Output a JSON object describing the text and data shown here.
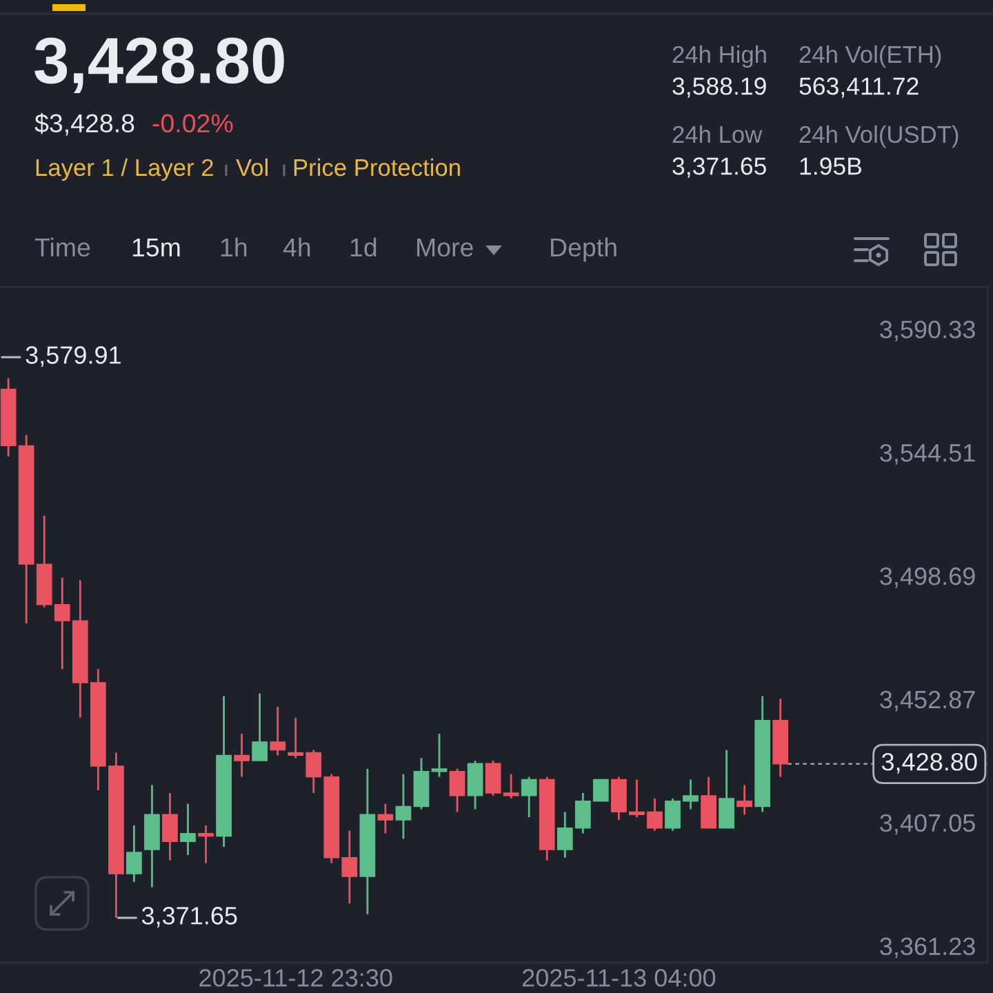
{
  "chart_data": [
    {
      "type": "other",
      "title": "3,428.80",
      "annotations": [
        "$3,428.8",
        "-0.02%",
        "Layer 1 / Layer 2",
        "Vol",
        "Price Protection",
        "24h High",
        "3,588.19",
        "24h Vol(ETH)",
        "563,411.72",
        "24h Low",
        "3,371.65",
        "24h Vol(USDT)",
        "1.95B",
        "Time",
        "15m",
        "1h",
        "4h",
        "1d",
        "More",
        "Depth"
      ]
    },
    {
      "type": "candlestick",
      "x": [
        "2025-11-12T19:30",
        "2025-11-12T19:45",
        "2025-11-12T20:00",
        "2025-11-12T20:15",
        "2025-11-12T20:30",
        "2025-11-12T20:45",
        "2025-11-12T21:00",
        "2025-11-12T21:15",
        "2025-11-12T21:30",
        "2025-11-12T21:45",
        "2025-11-12T22:00",
        "2025-11-12T22:15",
        "2025-11-12T22:30",
        "2025-11-12T22:45",
        "2025-11-12T23:00",
        "2025-11-12T23:15",
        "2025-11-12T23:30",
        "2025-11-12T23:45",
        "2025-11-13T00:00",
        "2025-11-13T00:15",
        "2025-11-13T00:30",
        "2025-11-13T00:45",
        "2025-11-13T01:00",
        "2025-11-13T01:15",
        "2025-11-13T01:30",
        "2025-11-13T01:45",
        "2025-11-13T02:00",
        "2025-11-13T02:15",
        "2025-11-13T02:30",
        "2025-11-13T02:45",
        "2025-11-13T03:00",
        "2025-11-13T03:15",
        "2025-11-13T03:30",
        "2025-11-13T03:45",
        "2025-11-13T04:00",
        "2025-11-13T04:15",
        "2025-11-13T04:30",
        "2025-11-13T04:45",
        "2025-11-13T05:00",
        "2025-11-13T05:15",
        "2025-11-13T05:30",
        "2025-11-13T05:45",
        "2025-11-13T06:00",
        "2025-11-13T06:15"
      ],
      "ohlc": [
        [
          3568,
          3572,
          3543,
          3547
        ],
        [
          3547,
          3551,
          3481,
          3503
        ],
        [
          3503,
          3521,
          3487,
          3488
        ],
        [
          3488,
          3498,
          3464,
          3482
        ],
        [
          3482,
          3497,
          3446,
          3459
        ],
        [
          3459,
          3464,
          3419,
          3428
        ],
        [
          3428,
          3433,
          3371.65,
          3388
        ],
        [
          3388,
          3406,
          3385,
          3396
        ],
        [
          3397,
          3421,
          3383,
          3410
        ],
        [
          3410,
          3418,
          3393,
          3400
        ],
        [
          3400,
          3414,
          3395,
          3403
        ],
        [
          3403,
          3406,
          3392,
          3402
        ],
        [
          3402,
          3454,
          3398,
          3432
        ],
        [
          3432,
          3440,
          3424,
          3430
        ],
        [
          3430,
          3455,
          3430,
          3437
        ],
        [
          3437,
          3450,
          3432,
          3434
        ],
        [
          3433,
          3446,
          3431,
          3432
        ],
        [
          3433,
          3434,
          3418,
          3424
        ],
        [
          3424,
          3425,
          3392,
          3394
        ],
        [
          3394,
          3404,
          3377,
          3387
        ],
        [
          3387,
          3427,
          3373,
          3410
        ],
        [
          3410,
          3414,
          3403,
          3408
        ],
        [
          3408,
          3425,
          3401,
          3413
        ],
        [
          3413,
          3431,
          3412,
          3426
        ],
        [
          3426,
          3440,
          3424,
          3427
        ],
        [
          3426,
          3427,
          3411,
          3417
        ],
        [
          3417,
          3430,
          3412,
          3429
        ],
        [
          3429,
          3430,
          3417,
          3418
        ],
        [
          3418,
          3425,
          3416,
          3417
        ],
        [
          3417,
          3424,
          3409,
          3423
        ],
        [
          3423,
          3424,
          3393,
          3397
        ],
        [
          3397,
          3411,
          3394,
          3405
        ],
        [
          3405,
          3418,
          3403,
          3415
        ],
        [
          3415,
          3423,
          3415,
          3423
        ],
        [
          3423,
          3424,
          3408,
          3411
        ],
        [
          3411,
          3423,
          3409,
          3410
        ],
        [
          3411,
          3416,
          3404,
          3405
        ],
        [
          3405,
          3416,
          3404,
          3415
        ],
        [
          3415,
          3423,
          3412,
          3417
        ],
        [
          3417,
          3424,
          3405,
          3405
        ],
        [
          3405,
          3434,
          3405,
          3416
        ],
        [
          3415,
          3421,
          3410,
          3413
        ],
        [
          3413,
          3454,
          3411,
          3445
        ],
        [
          3445,
          3453,
          3424,
          3428.8
        ]
      ],
      "colors": [
        "#ea5460",
        "#ea5460",
        "#ea5460",
        "#ea5460",
        "#ea5460",
        "#ea5460",
        "#ea5460",
        "#5dbe8c",
        "#5dbe8c",
        "#ea5460",
        "#5dbe8c",
        "#ea5460",
        "#5dbe8c",
        "#ea5460",
        "#5dbe8c",
        "#ea5460",
        "#ea5460",
        "#ea5460",
        "#ea5460",
        "#ea5460",
        "#5dbe8c",
        "#ea5460",
        "#5dbe8c",
        "#5dbe8c",
        "#5dbe8c",
        "#ea5460",
        "#5dbe8c",
        "#ea5460",
        "#ea5460",
        "#5dbe8c",
        "#ea5460",
        "#5dbe8c",
        "#5dbe8c",
        "#5dbe8c",
        "#ea5460",
        "#ea5460",
        "#ea5460",
        "#5dbe8c",
        "#5dbe8c",
        "#ea5460",
        "#5dbe8c",
        "#ea5460",
        "#5dbe8c",
        "#ea5460"
      ],
      "xlim": [
        "2025-11-12T19:23",
        "2025-11-13T09:08"
      ],
      "xticks": [
        {
          "value": "2025-11-12T23:30",
          "label": "2025-11-12 23:30"
        },
        {
          "value": "2025-11-13T04:00",
          "label": "2025-11-13 04:00"
        }
      ],
      "ylim": [
        3355,
        3606
      ],
      "yticks": [
        {
          "value": 3590.33,
          "label": "3,590.33"
        },
        {
          "value": 3544.51,
          "label": "3,544.51"
        },
        {
          "value": 3498.69,
          "label": "3,498.69"
        },
        {
          "value": 3452.87,
          "label": "3,452.87"
        },
        {
          "value": 3407.05,
          "label": "3,407.05"
        },
        {
          "value": 3361.23,
          "label": "3,361.23"
        }
      ],
      "annotations": [
        "3,579.91",
        {
          "text": "3,371.65",
          "x": "2025-11-12T21:00",
          "y": 3371.65
        }
      ],
      "ref_lines": [
        {
          "axis": "y",
          "value": 3428.8,
          "label": "3,428.80",
          "line_style": "dashed"
        }
      ]
    }
  ]
}
